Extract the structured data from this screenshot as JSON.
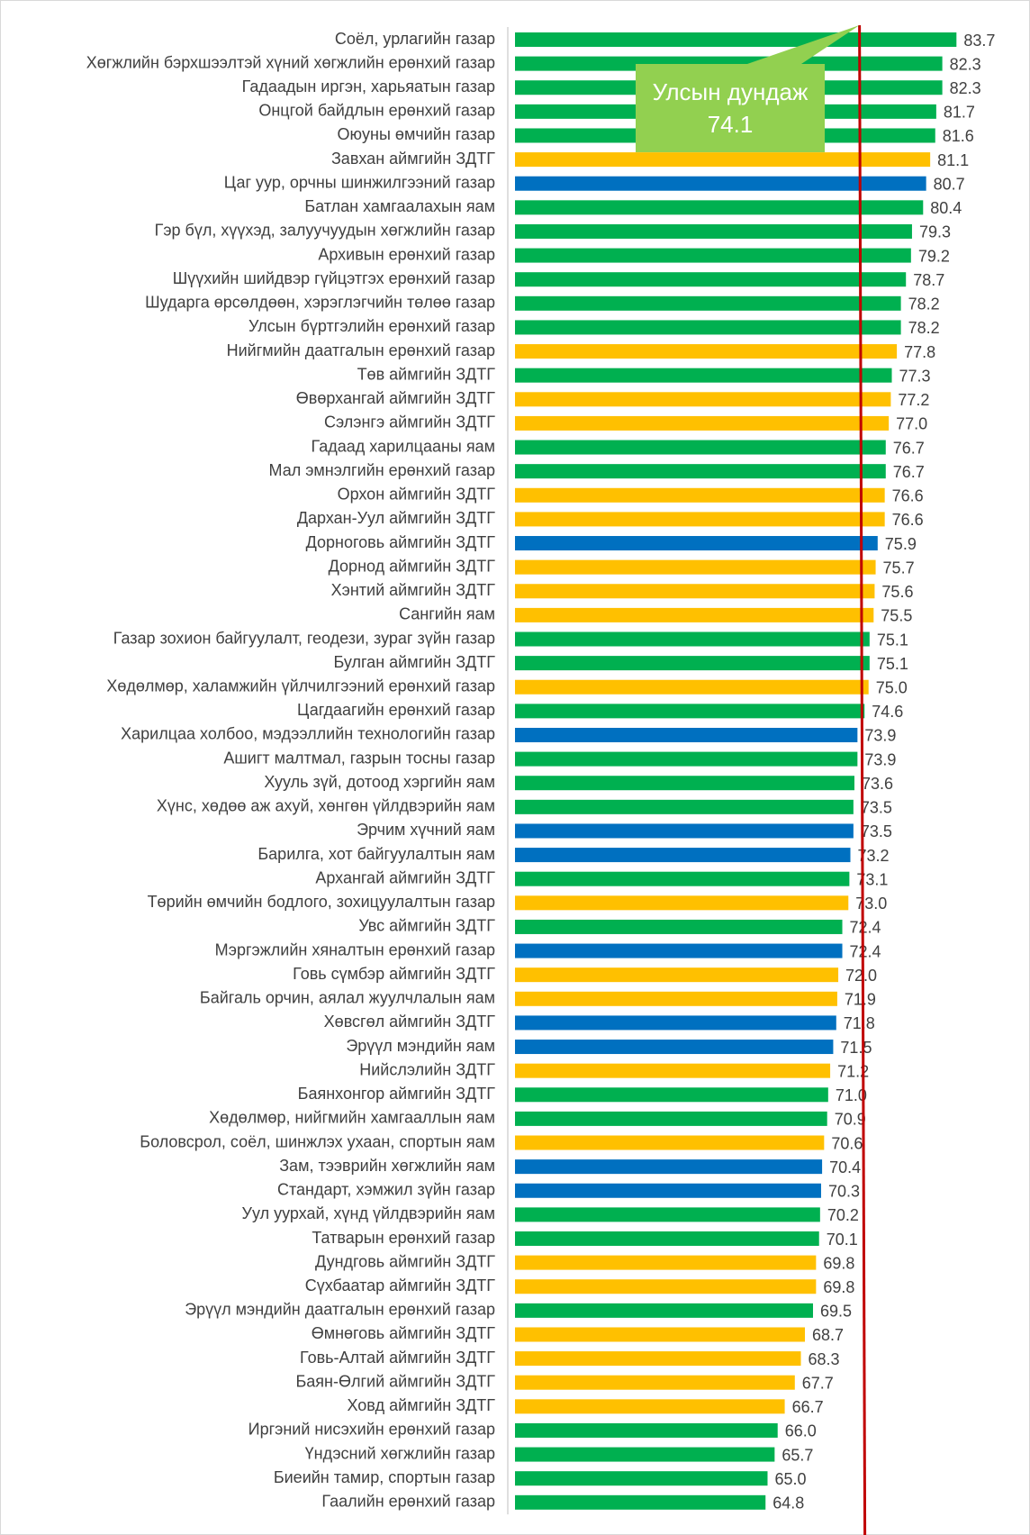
{
  "chart_data": {
    "type": "barh",
    "categories": [
      "Соёл, урлагийн газар",
      "Хөгжлийн бэрхшээлтэй хүний хөгжлийн ерөнхий газар",
      "Гадаадын иргэн, харьяатын газар",
      "Онцгой байдлын ерөнхий газар",
      "Оюуны өмчийн газар",
      "Завхан аймгийн ЗДТГ",
      "Цаг уур, орчны  шинжилгээний газар",
      "Батлан хамгаалахын яам",
      "Гэр бүл, хүүхэд, залуучуудын хөгжлийн газар",
      "Архивын ерөнхий газар",
      "Шүүхийн шийдвэр гүйцэтгэх ерөнхий газар",
      "Шударга өрсөлдөөн, хэрэглэгчийн төлөө газар",
      "Улсын бүртгэлийн ерөнхий газар",
      "Нийгмийн даатгалын ерөнхий газар",
      "Төв аймгийн ЗДТГ",
      "Өвөрхангай аймгийн ЗДТГ",
      "Сэлэнгэ аймгийн ЗДТГ",
      "Гадаад харилцааны яам",
      "Мал эмнэлгийн ерөнхий газар",
      "Орхон аймгийн ЗДТГ",
      "Дархан-Уул аймгийн ЗДТГ",
      "Дорноговь аймгийн ЗДТГ",
      "Дорнод аймгийн ЗДТГ",
      "Хэнтий аймгийн ЗДТГ",
      "Сангийн яам",
      "Газар зохион байгуулалт, геодези, зураг зүйн газар",
      "Булган аймгийн ЗДТГ",
      "Хөдөлмөр, халамжийн үйлчилгээний ерөнхий газар",
      "Цагдаагийн ерөнхий газар",
      "Харилцаа холбоо, мэдээллийн технологийн газар",
      "Ашигт малтмал, газрын тосны газар",
      "Хууль зүй, дотоод хэргийн яам",
      "Хүнс, хөдөө аж ахуй, хөнгөн үйлдвэрийн яам",
      "Эрчим хүчний яам",
      "Барилга, хот байгуулалтын яам",
      "Архангай аймгийн ЗДТГ",
      "Төрийн өмчийн бодлого, зохицуулалтын газар",
      "Увс аймгийн ЗДТГ",
      "Мэргэжлийн хяналтын ерөнхий газар",
      "Говь сүмбэр аймгийн ЗДТГ",
      "Байгаль орчин, аялал жуулчлалын яам",
      "Хөвсгөл аймгийн ЗДТГ",
      "Эрүүл мэндийн яам",
      "Нийслэлийн ЗДТГ",
      "Баянхонгор аймгийн ЗДТГ",
      "Хөдөлмөр, нийгмийн хамгааллын яам",
      "Боловсрол, соёл, шинжлэх ухаан, спортын яам",
      "Зам, тээврийн хөгжлийн яам",
      "Стандарт, хэмжил зүйн газар",
      "Уул уурхай, хүнд үйлдвэрийн яам",
      "Татварын ерөнхий газар",
      "Дундговь аймгийн ЗДТГ",
      "Сүхбаатар аймгийн ЗДТГ",
      "Эрүүл мэндийн даатгалын ерөнхий газар",
      "Өмнөговь аймгийн ЗДТГ",
      "Говь-Алтай аймгийн ЗДТГ",
      "Баян-Өлгий аймгийн ЗДТГ",
      "Ховд аймгийн ЗДТГ",
      "Иргэний нисэхийн ерөнхий газар",
      "Үндэсний хөгжлийн газар",
      "Биеийн тамир, спортын газар",
      "Гаалийн ерөнхий газар"
    ],
    "values": [
      83.7,
      82.3,
      82.3,
      81.7,
      81.6,
      81.1,
      80.7,
      80.4,
      79.3,
      79.2,
      78.7,
      78.2,
      78.2,
      77.8,
      77.3,
      77.2,
      77.0,
      76.7,
      76.7,
      76.6,
      76.6,
      75.9,
      75.7,
      75.6,
      75.5,
      75.1,
      75.1,
      75.0,
      74.6,
      73.9,
      73.9,
      73.6,
      73.5,
      73.5,
      73.2,
      73.1,
      73.0,
      72.4,
      72.4,
      72.0,
      71.9,
      71.8,
      71.5,
      71.2,
      71.0,
      70.9,
      70.6,
      70.4,
      70.3,
      70.2,
      70.1,
      69.8,
      69.8,
      69.5,
      68.7,
      68.3,
      67.7,
      66.7,
      66.0,
      65.7,
      65.0,
      64.8
    ],
    "value_labels": [
      "83.7",
      "82.3",
      "82.3",
      "81.7",
      "81.6",
      "81.1",
      "80.7",
      "80.4",
      "79.3",
      "79.2",
      "78.7",
      "78.2",
      "78.2",
      "77.8",
      "77.3",
      "77.2",
      "77.0",
      "76.7",
      "76.7",
      "76.6",
      "76.6",
      "75.9",
      "75.7",
      "75.6",
      "75.5",
      "75.1",
      "75.1",
      "75.0",
      "74.6",
      "73.9",
      "73.9",
      "73.6",
      "73.5",
      "73.5",
      "73.2",
      "73.1",
      "73.0",
      "72.4",
      "72.4",
      "72.0",
      "71.9",
      "71.8",
      "71.5",
      "71.2",
      "71.0",
      "70.9",
      "70.6",
      "70.4",
      "70.3",
      "70.2",
      "70.1",
      "69.8",
      "69.8",
      "69.5",
      "68.7",
      "68.3",
      "67.7",
      "66.7",
      "66.0",
      "65.7",
      "65.0",
      "64.8"
    ],
    "colors": [
      "#00b050",
      "#00b050",
      "#00b050",
      "#00b050",
      "#00b050",
      "#ffc000",
      "#0070c0",
      "#00b050",
      "#00b050",
      "#00b050",
      "#00b050",
      "#00b050",
      "#00b050",
      "#ffc000",
      "#00b050",
      "#ffc000",
      "#ffc000",
      "#00b050",
      "#00b050",
      "#ffc000",
      "#ffc000",
      "#0070c0",
      "#ffc000",
      "#ffc000",
      "#ffc000",
      "#00b050",
      "#00b050",
      "#ffc000",
      "#00b050",
      "#0070c0",
      "#00b050",
      "#00b050",
      "#00b050",
      "#0070c0",
      "#0070c0",
      "#00b050",
      "#ffc000",
      "#00b050",
      "#0070c0",
      "#ffc000",
      "#ffc000",
      "#0070c0",
      "#0070c0",
      "#ffc000",
      "#00b050",
      "#00b050",
      "#ffc000",
      "#0070c0",
      "#0070c0",
      "#00b050",
      "#00b050",
      "#ffc000",
      "#ffc000",
      "#00b050",
      "#ffc000",
      "#ffc000",
      "#ffc000",
      "#ffc000",
      "#00b050",
      "#00b050",
      "#00b050",
      "#00b050"
    ],
    "xlim": [
      40,
      90
    ],
    "reference_line": {
      "value": 74.1,
      "label": "Улсын дундаж 74.1",
      "color": "#c00000"
    }
  }
}
